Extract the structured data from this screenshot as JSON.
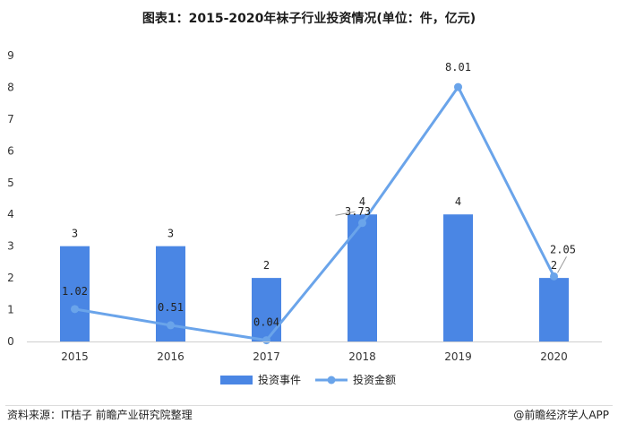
{
  "chart_data": {
    "type": "bar",
    "title": "图表1：2015-2020年袜子行业投资情况(单位：件，亿元)",
    "categories": [
      "2015",
      "2016",
      "2017",
      "2018",
      "2019",
      "2020"
    ],
    "ylim": [
      0,
      9
    ],
    "yticks": [
      "0",
      "1",
      "2",
      "3",
      "4",
      "5",
      "6",
      "7",
      "8",
      "9"
    ],
    "legend_position": "bottom",
    "grid": false,
    "series": [
      {
        "name": "投资事件",
        "kind": "bar",
        "color": "#4a86e4",
        "values": [
          3,
          3,
          2,
          4,
          4,
          2
        ],
        "labels": [
          "3",
          "3",
          "2",
          "4",
          "4",
          "2"
        ]
      },
      {
        "name": "投资金额",
        "kind": "line",
        "color": "#6aa4ea",
        "values": [
          1.02,
          0.51,
          0.04,
          3.73,
          8.01,
          2.05
        ],
        "labels": [
          "1.02",
          "0.51",
          "0.04",
          "3.73",
          "8.01",
          "2.05"
        ]
      }
    ]
  },
  "footer": {
    "source": "资料来源：IT桔子 前瞻产业研究院整理",
    "brand": "@前瞻经济学人APP"
  }
}
